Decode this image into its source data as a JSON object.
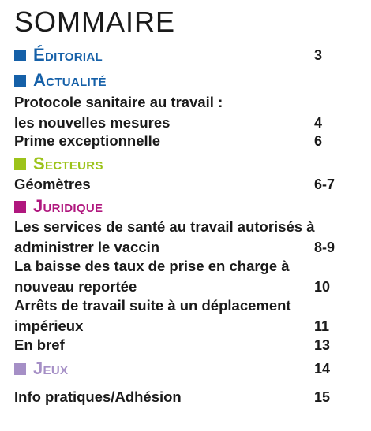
{
  "title": "SOMMAIRE",
  "sections": [
    {
      "key": "editorial",
      "name": "Éditorial",
      "page": "3",
      "color": "#1560a8"
    },
    {
      "key": "actualite",
      "name": "Actualité",
      "page": "",
      "color": "#1560a8"
    },
    {
      "key": "secteurs",
      "name": "Secteurs",
      "page": "",
      "color": "#9cc31a"
    },
    {
      "key": "juridique",
      "name": "Juridique",
      "page": "",
      "color": "#b0177e"
    },
    {
      "key": "jeux",
      "name": "Jeux",
      "page": "14",
      "color": "#a58fc6"
    }
  ],
  "entries": [
    {
      "lines": [
        "Protocole sanitaire au travail :",
        "les nouvelles mesures"
      ],
      "page": "4"
    },
    {
      "lines": [
        "Prime exceptionnelle"
      ],
      "page": "6"
    },
    {
      "lines": [
        "Géomètres"
      ],
      "page": "6-7"
    },
    {
      "lines": [
        "Les services de santé au travail autorisés à",
        "administrer le vaccin"
      ],
      "page": "8-9"
    },
    {
      "lines": [
        "La baisse des taux de prise en charge à",
        "nouveau reportée"
      ],
      "page": "10"
    },
    {
      "lines": [
        "Arrêts de travail suite à un déplacement",
        "impérieux"
      ],
      "page": "11"
    },
    {
      "lines": [
        "En bref"
      ],
      "page": "13"
    },
    {
      "lines": [
        "Info pratiques/Adhésion"
      ],
      "page": "15"
    }
  ]
}
